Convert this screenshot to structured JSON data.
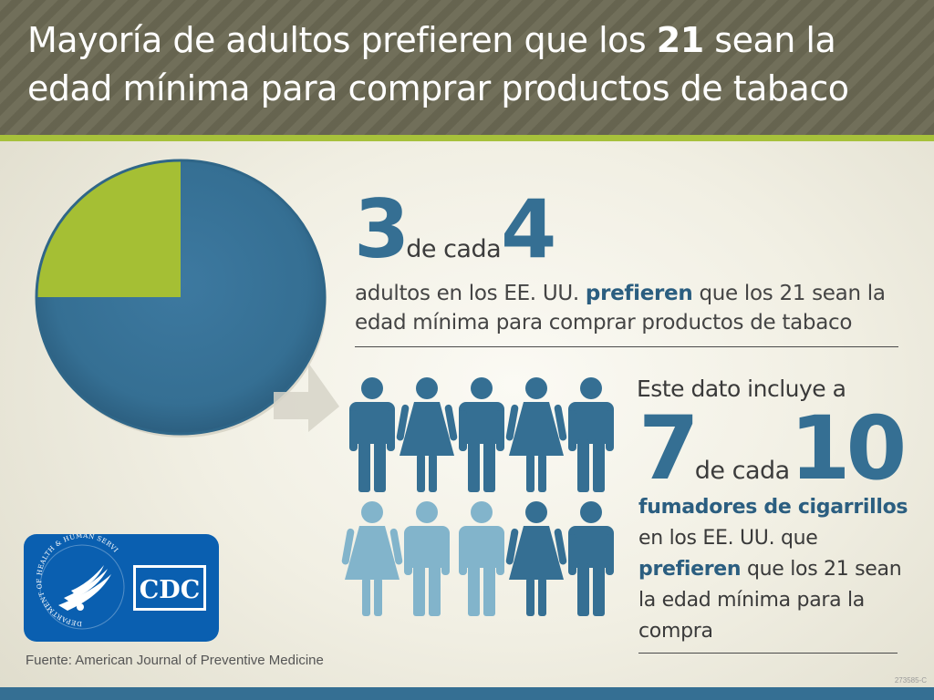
{
  "header": {
    "title_part1": "Mayoría de adultos prefieren que los ",
    "title_bold": "21",
    "title_part2": " sean la edad mínima para comprar productos de tabaco"
  },
  "stat1": {
    "numerator": "3",
    "connector": "de cada",
    "denominator": "4",
    "desc_part1": "adultos en los EE. UU. ",
    "desc_bold": "prefieren",
    "desc_part2": " que los 21 sean la edad mínima para comprar productos de tabaco",
    "pie_fraction": 0.75
  },
  "stat2": {
    "intro": "Este dato incluye a",
    "numerator": "7",
    "connector": "de cada",
    "denominator": "10",
    "desc_bold1": "fumadores de cigarrillos",
    "desc_part1": " en los EE. UU. que ",
    "desc_bold2": "prefieren",
    "desc_part2": " que los 21 sean la edad mínima para la compra",
    "highlighted_people": 7,
    "total_people": 10
  },
  "logo": {
    "hhs_text": "DEPARTMENT OF HEALTH & HUMAN SERVICES · USA",
    "cdc_text": "CDC"
  },
  "footer": {
    "source": "Fuente: American Journal of Preventive Medicine",
    "code": "273585-C"
  },
  "colors": {
    "header": "#6b6953",
    "accent_green": "#a7c13b",
    "dark_blue": "#356f93",
    "light_blue": "#82b4cb",
    "logo_blue": "#0a5fb0"
  }
}
